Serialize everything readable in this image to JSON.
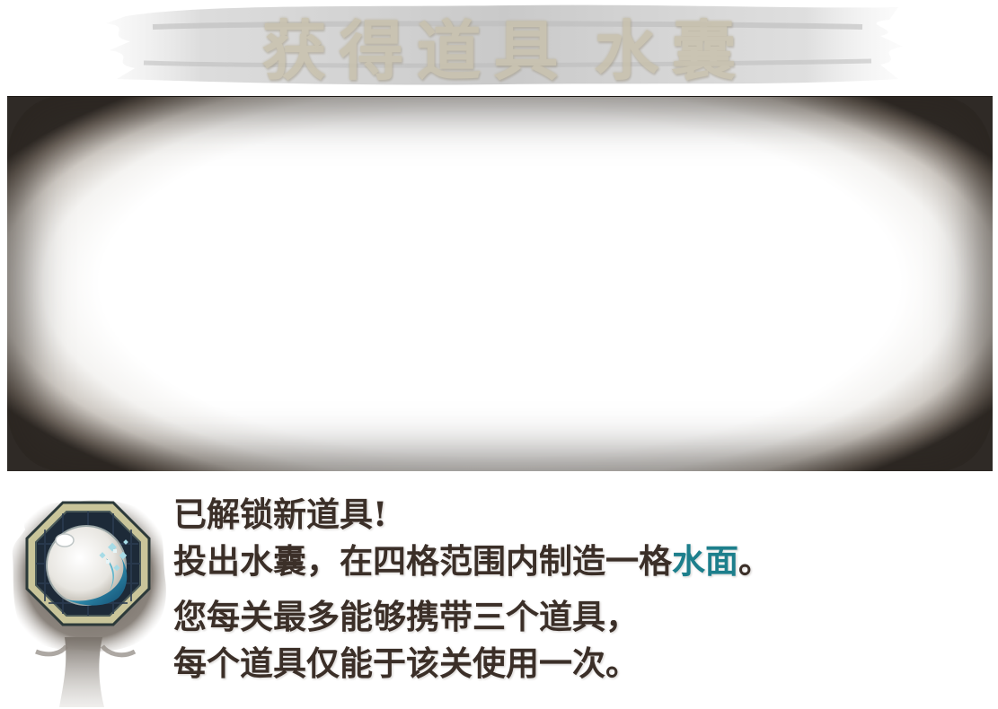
{
  "title": {
    "prefix": "获得道具",
    "item_name": "水囊"
  },
  "description": {
    "line1": "已解锁新道具!",
    "line2_before": "投出水囊，在四格范围内制造一格",
    "line2_highlight": "水面",
    "line2_after": "。",
    "line3": "您每关最多能够携带三个道具，",
    "line4": "每个道具仅能于该关使用一次。"
  },
  "icon": {
    "name": "water-pouch-icon"
  },
  "colors": {
    "text": "#3b2f28",
    "highlight": "#1d7f8c",
    "title": "#c8c1ad",
    "frame_dark": "#2f2a26"
  }
}
